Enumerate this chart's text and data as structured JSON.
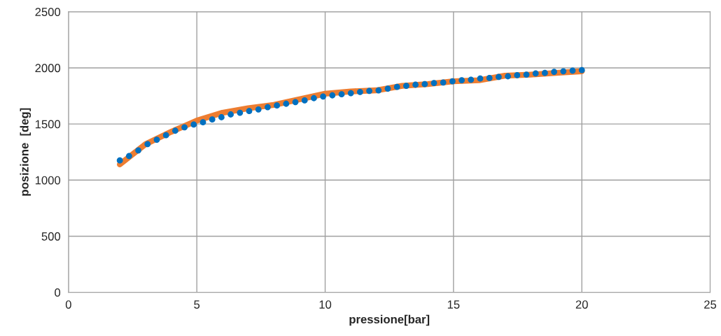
{
  "chart_data": {
    "type": "line",
    "xlabel": "pressione[bar]",
    "ylabel": "posizione  [deg]",
    "xlim": [
      0,
      25
    ],
    "xticks": [
      0,
      5,
      10,
      15,
      20,
      25
    ],
    "ylim": [
      0,
      2500
    ],
    "yticks": [
      0,
      500,
      1000,
      1500,
      2000,
      2500
    ],
    "grid": true,
    "legend": false,
    "series": [
      {
        "color": "#ed7d31",
        "marker": "none",
        "line_style": "solid",
        "x": [
          2,
          3,
          4,
          5,
          6,
          7,
          8,
          9,
          10,
          11,
          12,
          13,
          14,
          15,
          16,
          17,
          18,
          19,
          20
        ],
        "values": [
          1140,
          1320,
          1430,
          1530,
          1600,
          1640,
          1670,
          1720,
          1770,
          1790,
          1800,
          1840,
          1855,
          1880,
          1890,
          1930,
          1940,
          1955,
          1970
        ]
      },
      {
        "type": "scatter",
        "color": "#0070c0",
        "marker": "circle",
        "x": [
          2,
          2.36,
          2.72,
          3.08,
          3.44,
          3.8,
          4.16,
          4.52,
          4.88,
          5.24,
          5.6,
          5.96,
          6.32,
          6.68,
          7.04,
          7.4,
          7.76,
          8.12,
          8.48,
          8.84,
          9.2,
          9.56,
          9.92,
          10.28,
          10.64,
          11,
          11.36,
          11.72,
          12.08,
          12.44,
          12.8,
          13.16,
          13.52,
          13.88,
          14.24,
          14.6,
          14.96,
          15.32,
          15.68,
          16.04,
          16.4,
          16.76,
          17.12,
          17.48,
          17.84,
          18.2,
          18.56,
          18.92,
          19.28,
          19.64,
          20
        ],
        "values": [
          1175,
          1215,
          1265,
          1320,
          1360,
          1400,
          1440,
          1470,
          1495,
          1515,
          1540,
          1560,
          1585,
          1600,
          1615,
          1630,
          1650,
          1665,
          1680,
          1695,
          1710,
          1730,
          1745,
          1755,
          1765,
          1775,
          1785,
          1795,
          1800,
          1815,
          1830,
          1840,
          1850,
          1855,
          1865,
          1870,
          1880,
          1890,
          1895,
          1905,
          1910,
          1920,
          1925,
          1935,
          1940,
          1950,
          1955,
          1965,
          1970,
          1975,
          1980
        ]
      }
    ]
  }
}
